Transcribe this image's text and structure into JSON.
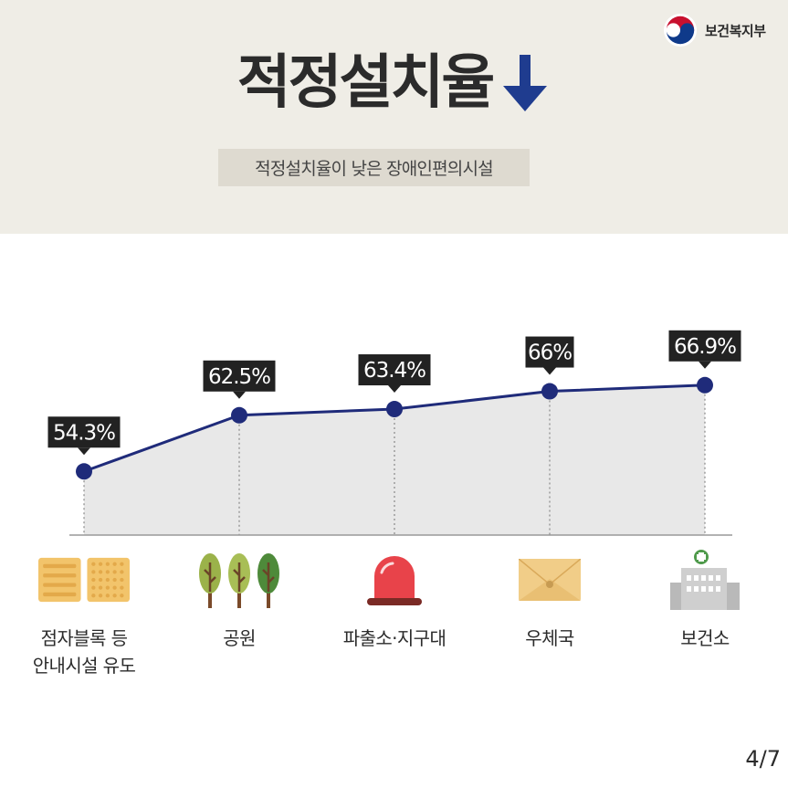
{
  "header": {
    "ministry_name": "보건복지부",
    "title": "적정설치율",
    "subtitle": "적정설치율이 낮은 장애인편의시설"
  },
  "chart_data": {
    "type": "area",
    "title": "적정설치율",
    "subtitle": "적정설치율이 낮은 장애인편의시설",
    "categories": [
      "점자블록 등\n안내시설 유도",
      "공원",
      "파출소·지구대",
      "우체국",
      "보건소"
    ],
    "series": [
      {
        "values": [
          54.3,
          62.5,
          63.4,
          66,
          66.9
        ],
        "labels": [
          "54.3%",
          "62.5%",
          "63.4%",
          "66%",
          "66.9%"
        ]
      }
    ],
    "ylim": [
      45,
      70
    ],
    "grid": false,
    "colors": {
      "line": "#1f2b7a",
      "area": "#e8e8e8",
      "label_bg": "#222222"
    }
  },
  "icons": [
    "tile-block-icon",
    "tree-icon",
    "siren-icon",
    "envelope-icon",
    "health-center-icon"
  ],
  "page": {
    "number": "4/7"
  }
}
